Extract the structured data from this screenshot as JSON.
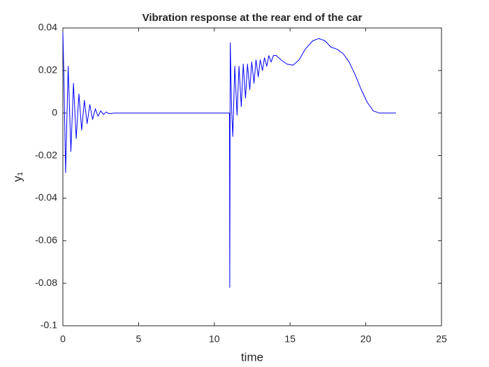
{
  "chart_data": {
    "type": "line",
    "title": "Vibration response at the rear end of the car",
    "x_label": "time",
    "y_label": "y₁",
    "xlim": [
      0,
      25
    ],
    "xticks": [
      0,
      5,
      10,
      15,
      20,
      25
    ],
    "ylim": [
      -0.1,
      0.04
    ],
    "yticks": [
      -0.1,
      -0.08,
      -0.06,
      -0.04,
      -0.02,
      0,
      0.02,
      0.04
    ],
    "series": [
      {
        "color": "#0000ff",
        "x": [
          0,
          0.06,
          0.18,
          0.35,
          0.53,
          0.7,
          0.88,
          1.06,
          1.24,
          1.42,
          1.6,
          1.78,
          1.96,
          2.14,
          2.32,
          2.5,
          2.68,
          2.86,
          3.04,
          3.4,
          11,
          11.02,
          11.05,
          11.15,
          11.22,
          11.35,
          11.5,
          11.63,
          11.78,
          11.91,
          12.06,
          12.19,
          12.34,
          12.47,
          12.62,
          12.75,
          12.9,
          13.03,
          13.18,
          13.31,
          13.46,
          13.6,
          13.75,
          13.9,
          14.1,
          14.4,
          14.8,
          15.2,
          15.6,
          16,
          16.5,
          16.9,
          17.3,
          17.7,
          18.1,
          18.5,
          18.9,
          19.3,
          19.7,
          20.1,
          20.5,
          20.9,
          21.5,
          22
        ],
        "values": [
          0.038,
          0.02,
          -0.028,
          0.022,
          -0.018,
          0.014,
          -0.012,
          0.009,
          -0.008,
          0.006,
          -0.005,
          0.004,
          -0.003,
          0.002,
          -0.0015,
          0.001,
          -0.0007,
          0.0005,
          -0.0003,
          0,
          0,
          -0.082,
          0.033,
          0,
          -0.011,
          0.022,
          -0.001,
          0.022,
          0.003,
          0.023,
          0.007,
          0.023,
          0.011,
          0.024,
          0.014,
          0.025,
          0.017,
          0.025,
          0.02,
          0.026,
          0.022,
          0.027,
          0.024,
          0.027,
          0.027,
          0.025,
          0.023,
          0.0225,
          0.025,
          0.03,
          0.034,
          0.035,
          0.034,
          0.031,
          0.03,
          0.028,
          0.024,
          0.018,
          0.011,
          0.005,
          0.001,
          0,
          0,
          0
        ]
      }
    ]
  }
}
